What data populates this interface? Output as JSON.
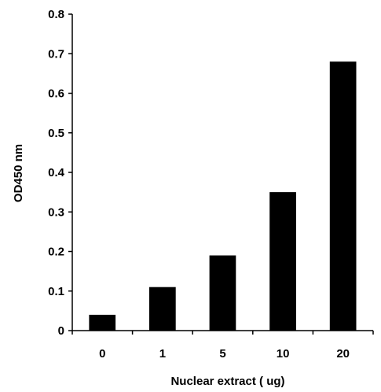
{
  "chart_data": {
    "type": "bar",
    "categories": [
      "0",
      "1",
      "5",
      "10",
      "20"
    ],
    "values": [
      0.04,
      0.11,
      0.19,
      0.35,
      0.68
    ],
    "title": "",
    "xlabel": "Nuclear extract ( ug)",
    "ylabel": "OD450 nm",
    "ylim": [
      0,
      0.8
    ],
    "yticks": [
      "0",
      "0.1",
      "0.2",
      "0.3",
      "0.4",
      "0.5",
      "0.6",
      "0.7",
      "0.8"
    ],
    "grid": false,
    "legend": "none",
    "bar_color": "#000000"
  }
}
